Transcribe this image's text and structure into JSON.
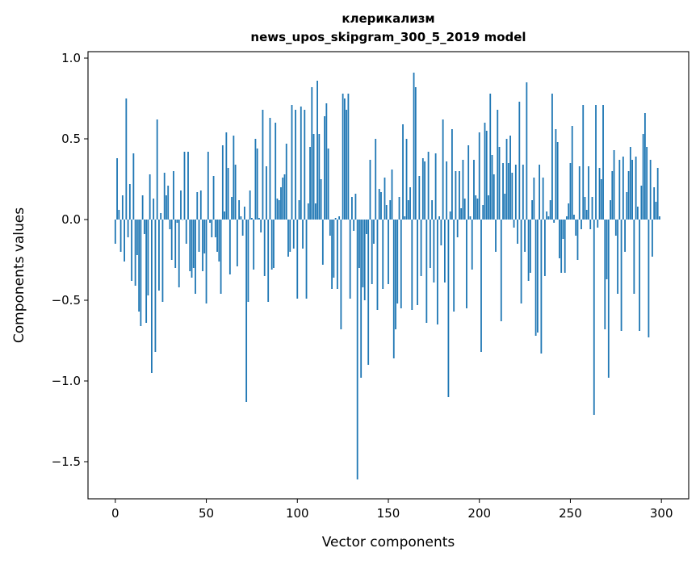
{
  "chart_data": {
    "type": "bar",
    "title": "клерикализм",
    "subtitle": "news_upos_skipgram_300_5_2019 model",
    "xlabel": "Vector components",
    "ylabel": "Components values",
    "xlim": [
      -15,
      315
    ],
    "ylim": [
      -1.73,
      1.04
    ],
    "xticks": [
      0,
      50,
      100,
      150,
      200,
      250,
      300
    ],
    "xtick_labels": [
      "0",
      "50",
      "100",
      "150",
      "200",
      "250",
      "300"
    ],
    "yticks": [
      1.0,
      0.5,
      0.0,
      -0.5,
      -1.0,
      -1.5
    ],
    "ytick_labels": [
      "1.0",
      "0.5",
      "0.0",
      "−0.5",
      "−1.0",
      "−1.5"
    ],
    "grid": false,
    "color": "#1f77b4",
    "values": [
      -0.15,
      0.38,
      0.06,
      -0.2,
      0.15,
      -0.26,
      0.75,
      -0.11,
      0.22,
      -0.38,
      0.41,
      -0.41,
      -0.22,
      -0.57,
      -0.66,
      0.15,
      -0.09,
      -0.64,
      -0.47,
      0.28,
      -0.95,
      0.13,
      -0.82,
      0.62,
      -0.44,
      0.04,
      -0.51,
      0.29,
      0.15,
      0.21,
      -0.06,
      -0.25,
      0.3,
      -0.3,
      -0.02,
      -0.42,
      0.18,
      0.0,
      0.42,
      -0.15,
      0.42,
      -0.32,
      -0.36,
      -0.3,
      -0.46,
      0.17,
      -0.2,
      0.18,
      -0.32,
      -0.21,
      -0.52,
      0.42,
      -0.02,
      -0.11,
      0.27,
      -0.11,
      -0.2,
      -0.26,
      -0.46,
      0.46,
      0.05,
      0.54,
      0.32,
      -0.34,
      0.14,
      0.52,
      0.34,
      -0.29,
      0.12,
      0.02,
      -0.1,
      0.08,
      -1.13,
      -0.51,
      0.18,
      0.01,
      -0.31,
      0.5,
      0.44,
      0.01,
      -0.08,
      0.68,
      -0.35,
      0.33,
      -0.51,
      0.63,
      -0.31,
      -0.3,
      0.6,
      0.13,
      0.12,
      0.2,
      0.26,
      0.28,
      0.47,
      -0.23,
      -0.2,
      0.71,
      -0.18,
      0.68,
      -0.49,
      0.12,
      0.7,
      -0.18,
      0.68,
      -0.49,
      0.1,
      0.45,
      0.82,
      0.53,
      0.1,
      0.86,
      0.53,
      0.25,
      -0.28,
      0.64,
      0.72,
      0.44,
      -0.1,
      -0.43,
      -0.36,
      0.01,
      -0.43,
      0.02,
      -0.68,
      0.78,
      0.75,
      0.68,
      0.78,
      -0.49,
      0.14,
      -0.07,
      0.16,
      -1.61,
      -0.3,
      -0.98,
      -0.42,
      -0.5,
      -0.09,
      -0.9,
      0.37,
      -0.4,
      -0.15,
      0.5,
      -0.56,
      0.19,
      0.17,
      -0.43,
      0.26,
      0.09,
      -0.4,
      0.12,
      0.31,
      -0.86,
      -0.68,
      -0.52,
      0.14,
      -0.55,
      0.59,
      0.02,
      0.5,
      0.12,
      0.2,
      -0.56,
      0.91,
      0.82,
      -0.53,
      0.27,
      -0.35,
      0.38,
      0.36,
      -0.64,
      0.42,
      -0.3,
      0.12,
      -0.39,
      0.41,
      -0.65,
      0.02,
      -0.16,
      0.62,
      -0.39,
      0.36,
      -1.1,
      0.05,
      0.56,
      -0.57,
      0.3,
      -0.11,
      0.3,
      0.07,
      0.37,
      0.13,
      -0.55,
      0.46,
      0.02,
      -0.31,
      0.37,
      0.15,
      0.13,
      0.54,
      -0.82,
      0.09,
      0.6,
      0.55,
      0.15,
      0.78,
      0.4,
      0.28,
      -0.2,
      0.68,
      0.45,
      -0.63,
      0.35,
      0.16,
      0.5,
      0.35,
      0.52,
      0.29,
      -0.05,
      0.34,
      -0.15,
      0.73,
      -0.52,
      0.34,
      -0.2,
      0.85,
      -0.38,
      -0.33,
      0.12,
      0.26,
      -0.72,
      -0.7,
      0.34,
      -0.83,
      0.26,
      -0.35,
      0.05,
      0.02,
      0.12,
      0.78,
      -0.02,
      0.56,
      0.48,
      -0.24,
      -0.33,
      -0.12,
      -0.33,
      0.02,
      0.1,
      0.35,
      0.58,
      0.03,
      -0.1,
      -0.25,
      0.33,
      -0.06,
      0.71,
      0.14,
      0.06,
      0.33,
      -0.06,
      0.14,
      -1.21,
      0.71,
      -0.05,
      0.32,
      0.25,
      0.71,
      -0.68,
      -0.37,
      -0.98,
      0.12,
      0.3,
      0.43,
      -0.1,
      -0.46,
      0.37,
      -0.69,
      0.39,
      -0.2,
      0.17,
      0.3,
      0.45,
      0.37,
      -0.46,
      0.39,
      0.08,
      -0.69,
      0.21,
      0.53,
      0.66,
      0.45,
      -0.73,
      0.37,
      -0.23,
      0.2,
      0.11,
      0.32,
      0.02
    ]
  }
}
